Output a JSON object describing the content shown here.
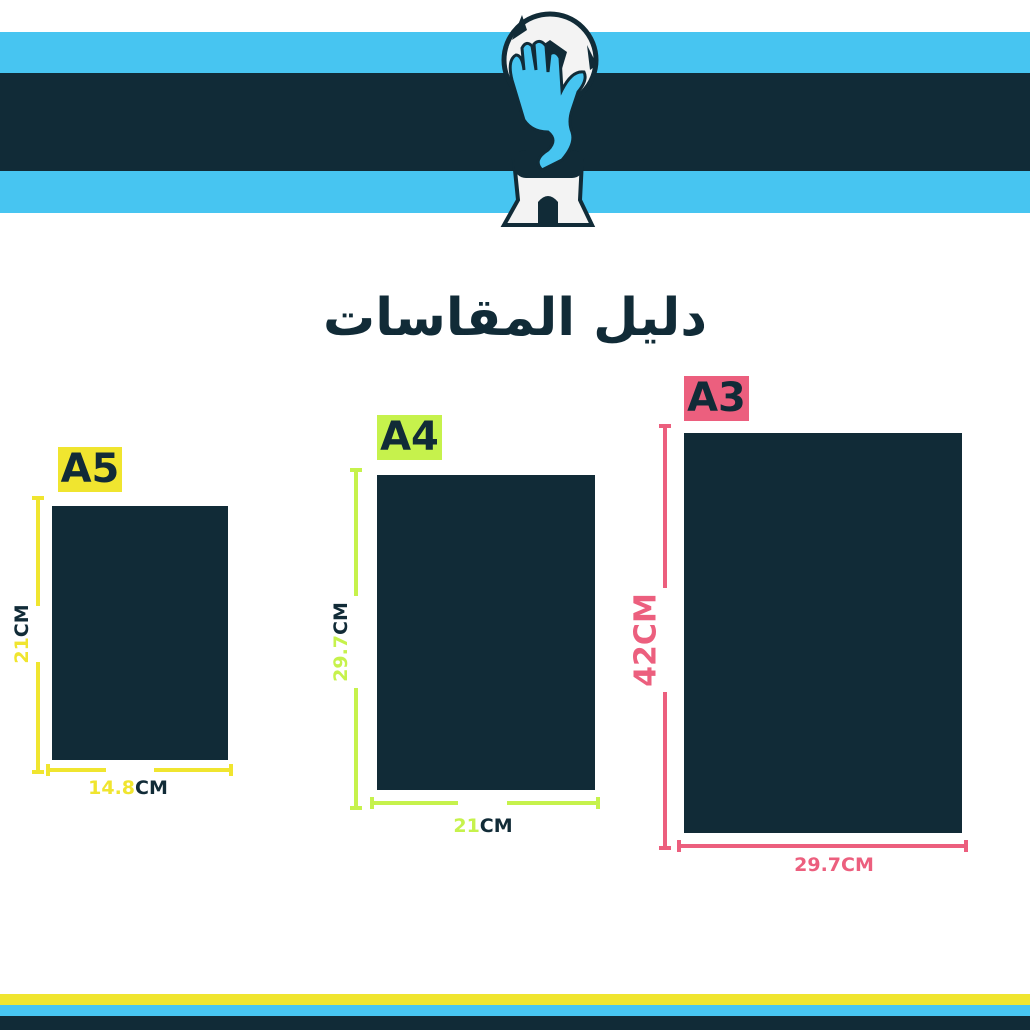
{
  "title": "دليل المقاسات",
  "logo": {
    "icon": "goalkeeper-glove-ball-trophy-logo"
  },
  "colors": {
    "dark": "#112b37",
    "blue": "#47c5f1",
    "yellow": "#f0e52f",
    "green": "#c6f24c",
    "pink": "#ec5f7e"
  },
  "sizes": [
    {
      "name": "A5",
      "height_value": "21",
      "width_value": "14.8",
      "unit": "CM",
      "color": "#f0e52f"
    },
    {
      "name": "A4",
      "height_value": "29.7",
      "width_value": "21",
      "unit": "CM",
      "color": "#c6f24c"
    },
    {
      "name": "A3",
      "height_value": "42",
      "width_value": "29.7",
      "unit": "CM",
      "color": "#ec5f7e"
    }
  ]
}
